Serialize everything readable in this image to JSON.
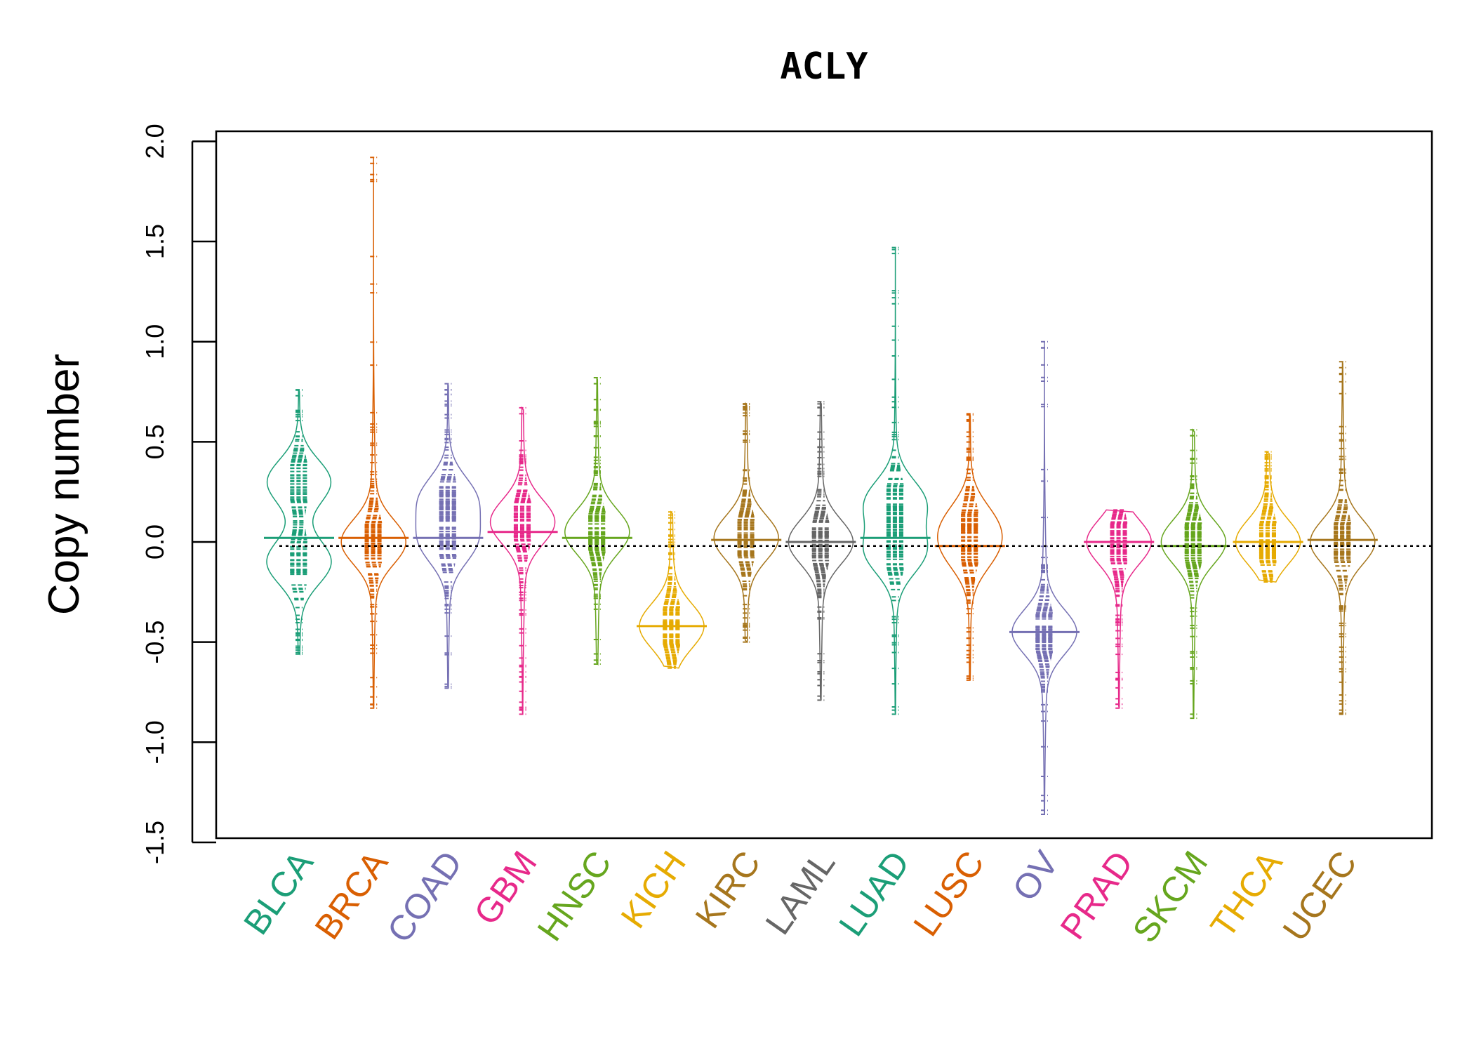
{
  "chart_data": {
    "type": "bean",
    "title": "ACLY",
    "xlabel": "",
    "ylabel": "Copy number",
    "ylim": [
      -1.5,
      2.0
    ],
    "yticks": [
      "-1.5",
      "-1.0",
      "-0.5",
      "0.0",
      "0.5",
      "1.0",
      "1.5",
      "2.0"
    ],
    "overall_reference_line": -0.02,
    "grid": false,
    "legend": "none",
    "categories": [
      "BLCA",
      "BRCA",
      "COAD",
      "GBM",
      "HNSC",
      "KICH",
      "KIRC",
      "LAML",
      "LUAD",
      "LUSC",
      "OV",
      "PRAD",
      "SKCM",
      "THCA",
      "UCEC"
    ],
    "series": [
      {
        "name": "BLCA",
        "color": "#1B9E77",
        "range": [
          -0.56,
          0.76
        ],
        "median": 0.02,
        "peaks": [
          0.3,
          -0.1
        ]
      },
      {
        "name": "BRCA",
        "color": "#D95F02",
        "range": [
          -0.83,
          1.92
        ],
        "median": 0.02,
        "peaks": [
          0.0
        ]
      },
      {
        "name": "COAD",
        "color": "#7570B3",
        "range": [
          -0.73,
          0.79
        ],
        "median": 0.02,
        "peaks": [
          0.22,
          0.0
        ]
      },
      {
        "name": "GBM",
        "color": "#E7298A",
        "range": [
          -0.86,
          0.67
        ],
        "median": 0.05,
        "peaks": [
          0.1
        ]
      },
      {
        "name": "HNSC",
        "color": "#66A61E",
        "range": [
          -0.61,
          0.82
        ],
        "median": 0.02,
        "peaks": [
          0.05
        ]
      },
      {
        "name": "KICH",
        "color": "#E6AB02",
        "range": [
          -0.63,
          0.15
        ],
        "median": -0.42,
        "peaks": [
          -0.42
        ]
      },
      {
        "name": "KIRC",
        "color": "#A6761D",
        "range": [
          -0.5,
          0.69
        ],
        "median": 0.01,
        "peaks": [
          0.02
        ]
      },
      {
        "name": "LAML",
        "color": "#666666",
        "range": [
          -0.79,
          0.7
        ],
        "median": 0.0,
        "peaks": [
          0.0
        ]
      },
      {
        "name": "LUAD",
        "color": "#1B9E77",
        "range": [
          -0.86,
          1.47
        ],
        "median": 0.02,
        "peaks": [
          0.2,
          -0.05
        ]
      },
      {
        "name": "LUSC",
        "color": "#D95F02",
        "range": [
          -0.69,
          0.64
        ],
        "median": -0.02,
        "peaks": [
          0.1,
          -0.05
        ]
      },
      {
        "name": "OV",
        "color": "#7570B3",
        "range": [
          -1.36,
          1.0
        ],
        "median": -0.45,
        "peaks": [
          -0.45
        ]
      },
      {
        "name": "PRAD",
        "color": "#E7298A",
        "range": [
          -0.83,
          0.16
        ],
        "median": 0.0,
        "peaks": [
          0.0
        ]
      },
      {
        "name": "SKCM",
        "color": "#66A61E",
        "range": [
          -0.88,
          0.56
        ],
        "median": -0.02,
        "peaks": [
          0.0
        ]
      },
      {
        "name": "THCA",
        "color": "#E6AB02",
        "range": [
          -0.2,
          0.45
        ],
        "median": 0.0,
        "peaks": [
          0.0
        ]
      },
      {
        "name": "UCEC",
        "color": "#A6761D",
        "range": [
          -0.86,
          0.9
        ],
        "median": 0.01,
        "peaks": [
          0.0
        ]
      }
    ]
  }
}
